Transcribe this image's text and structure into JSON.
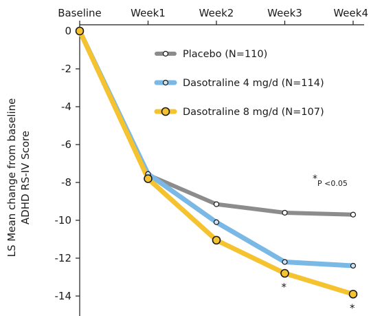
{
  "chart_data": {
    "type": "line",
    "categories": [
      "Baseline",
      "Week1",
      "Week2",
      "Week3",
      "Week4"
    ],
    "ylim": [
      -15,
      0
    ],
    "yticks": [
      0,
      -2,
      -4,
      -6,
      -8,
      -10,
      -12,
      -14
    ],
    "ylabel_lines": [
      "LS Mean change from baseline",
      "ADHD RS-IV Score"
    ],
    "series": [
      {
        "name": "Placebo (N=110)",
        "color": "#8c8c8c",
        "marker_fill": "#ffffff",
        "values": [
          0,
          -7.6,
          -9.15,
          -9.6,
          -9.7
        ]
      },
      {
        "name": "Dasotraline 4 mg/d (N=114)",
        "color": "#7ab8e6",
        "marker_fill": "#cfe3f3",
        "values": [
          0,
          -7.55,
          -10.1,
          -12.2,
          -12.4
        ]
      },
      {
        "name": "Dasotraline 8 mg/d (N=107)",
        "color": "#f5c230",
        "marker_fill": "#f5c230",
        "values": [
          0,
          -7.8,
          -11.05,
          -12.8,
          -13.9
        ]
      }
    ],
    "significance_markers": [
      {
        "category": "Week3",
        "label": "*"
      },
      {
        "category": "Week4",
        "label": "*"
      }
    ],
    "annotation": {
      "star": "*",
      "text": "P <0.05"
    },
    "legend_position": "upper-right",
    "grid": false
  }
}
